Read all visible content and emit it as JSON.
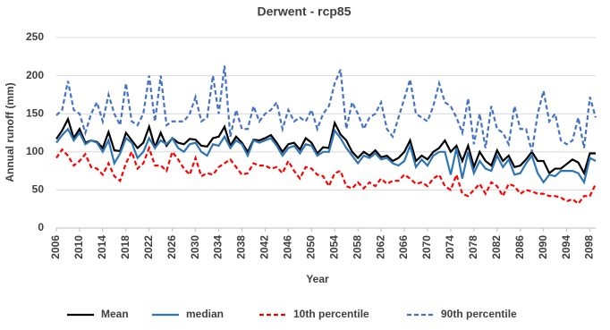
{
  "chart_data": {
    "type": "line",
    "title": "Derwent - rcp85",
    "x_label": "Year",
    "y_label": "Annual runoff (mm)",
    "x": [
      2006,
      2007,
      2008,
      2009,
      2010,
      2011,
      2012,
      2013,
      2014,
      2015,
      2016,
      2017,
      2018,
      2019,
      2020,
      2021,
      2022,
      2023,
      2024,
      2025,
      2026,
      2027,
      2028,
      2029,
      2030,
      2031,
      2032,
      2033,
      2034,
      2035,
      2036,
      2037,
      2038,
      2039,
      2040,
      2041,
      2042,
      2043,
      2044,
      2045,
      2046,
      2047,
      2048,
      2049,
      2050,
      2051,
      2052,
      2053,
      2054,
      2055,
      2056,
      2057,
      2058,
      2059,
      2060,
      2061,
      2062,
      2063,
      2064,
      2065,
      2066,
      2067,
      2068,
      2069,
      2070,
      2071,
      2072,
      2073,
      2074,
      2075,
      2076,
      2077,
      2078,
      2079,
      2080,
      2081,
      2082,
      2083,
      2084,
      2085,
      2086,
      2087,
      2088,
      2089,
      2090,
      2091,
      2092,
      2093,
      2094,
      2095,
      2096,
      2097,
      2098,
      2099
    ],
    "xlim": [
      2006,
      2099
    ],
    "xticks": [
      2006,
      2010,
      2014,
      2018,
      2022,
      2026,
      2030,
      2034,
      2038,
      2042,
      2046,
      2050,
      2054,
      2058,
      2062,
      2066,
      2070,
      2074,
      2078,
      2082,
      2086,
      2090,
      2094,
      2098
    ],
    "ylim": [
      0,
      250
    ],
    "yticks": [
      0,
      50,
      100,
      150,
      200,
      250
    ],
    "grid": true,
    "legend": "bottom",
    "series": [
      {
        "name": "Mean",
        "color": "#000000",
        "dash": "solid",
        "values": [
          117,
          128,
          143,
          118,
          130,
          112,
          115,
          113,
          105,
          126,
          102,
          101,
          125,
          115,
          105,
          112,
          133,
          106,
          125,
          108,
          118,
          112,
          110,
          117,
          116,
          108,
          107,
          118,
          120,
          133,
          108,
          120,
          112,
          100,
          116,
          115,
          118,
          122,
          112,
          100,
          110,
          112,
          103,
          118,
          112,
          98,
          106,
          105,
          138,
          123,
          115,
          100,
          92,
          100,
          95,
          102,
          93,
          95,
          88,
          92,
          100,
          115,
          88,
          95,
          90,
          100,
          105,
          115,
          100,
          108,
          88,
          108,
          80,
          100,
          88,
          82,
          102,
          88,
          95,
          80,
          82,
          90,
          100,
          88,
          88,
          72,
          78,
          78,
          84,
          90,
          86,
          72,
          98,
          98
        ]
      },
      {
        "name": "median",
        "color": "#2e75b6",
        "dash": "solid",
        "values": [
          112,
          122,
          130,
          115,
          125,
          110,
          115,
          112,
          100,
          115,
          85,
          98,
          118,
          112,
          92,
          100,
          118,
          105,
          115,
          110,
          118,
          105,
          100,
          110,
          112,
          100,
          95,
          110,
          108,
          120,
          105,
          115,
          110,
          95,
          115,
          112,
          115,
          118,
          108,
          95,
          105,
          108,
          98,
          110,
          108,
          95,
          100,
          100,
          128,
          118,
          105,
          95,
          85,
          95,
          92,
          98,
          90,
          92,
          85,
          82,
          88,
          108,
          80,
          90,
          82,
          95,
          100,
          100,
          70,
          105,
          65,
          100,
          72,
          88,
          78,
          75,
          95,
          80,
          90,
          70,
          72,
          85,
          95,
          72,
          60,
          70,
          68,
          75,
          75,
          75,
          72,
          60,
          92,
          88
        ]
      },
      {
        "name": "10th percentile",
        "color": "#ff0000",
        "dash": "dashed",
        "values": [
          92,
          103,
          95,
          82,
          88,
          97,
          80,
          78,
          70,
          85,
          68,
          62,
          85,
          100,
          78,
          85,
          105,
          82,
          82,
          75,
          100,
          90,
          78,
          70,
          92,
          68,
          72,
          70,
          80,
          85,
          90,
          80,
          70,
          72,
          85,
          82,
          82,
          78,
          80,
          72,
          88,
          75,
          65,
          80,
          78,
          70,
          68,
          55,
          72,
          75,
          55,
          52,
          60,
          52,
          60,
          55,
          65,
          58,
          62,
          62,
          70,
          65,
          58,
          60,
          55,
          65,
          70,
          55,
          50,
          70,
          45,
          42,
          50,
          58,
          45,
          60,
          55,
          42,
          58,
          55,
          45,
          50,
          48,
          45,
          45,
          42,
          42,
          40,
          35,
          38,
          32,
          42,
          42,
          58
        ]
      },
      {
        "name": "90th percentile",
        "color": "#4472c4",
        "dash": "dashed",
        "values": [
          148,
          155,
          193,
          155,
          150,
          125,
          150,
          165,
          140,
          175,
          150,
          135,
          190,
          140,
          135,
          150,
          200,
          140,
          200,
          135,
          140,
          140,
          140,
          150,
          172,
          140,
          145,
          200,
          150,
          213,
          120,
          155,
          130,
          130,
          160,
          140,
          150,
          155,
          165,
          130,
          155,
          140,
          145,
          140,
          155,
          130,
          150,
          160,
          190,
          208,
          130,
          165,
          150,
          130,
          145,
          150,
          165,
          130,
          120,
          145,
          170,
          195,
          150,
          145,
          140,
          160,
          190,
          165,
          160,
          145,
          125,
          170,
          110,
          150,
          105,
          160,
          130,
          125,
          110,
          160,
          130,
          130,
          100,
          150,
          180,
          140,
          150,
          115,
          110,
          115,
          145,
          105,
          172,
          145
        ]
      }
    ]
  }
}
